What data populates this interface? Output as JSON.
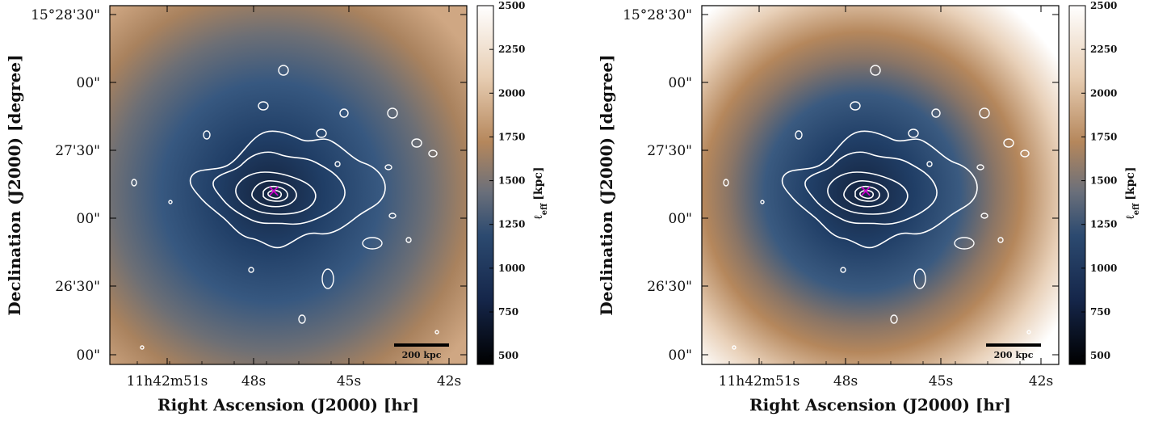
{
  "chart_data": [
    {
      "type": "heatmap",
      "xlabel": "Right Ascension (J2000) [hr]",
      "ylabel": "Declination (J2000) [degree]",
      "x_tick_labels": [
        "11h42m51s",
        "48s",
        "45s",
        "42s"
      ],
      "y_tick_labels": [
        "15°28'30\"",
        "00\"",
        "27'30\"",
        "00\"",
        "26'30\"",
        "00\""
      ],
      "colorbar": {
        "label": "ℓ",
        "label_sub": "eff",
        "label_unit": "[kpc]",
        "range": [
          450,
          2500
        ],
        "ticks": [
          "2500",
          "2250",
          "2000",
          "1750",
          "1500",
          "1250",
          "1000",
          "750",
          "500"
        ],
        "colors": [
          "#ffffff",
          "#b5875c",
          "#2c4a70",
          "#000000"
        ]
      },
      "scale_bar_label": "200 kpc",
      "marker": "×",
      "marker_color": "#d200d2",
      "contour_color": "#ffffff",
      "edge_value_kpc": 1900,
      "center_value_kpc": 700
    },
    {
      "type": "heatmap",
      "xlabel": "Right Ascension (J2000) [hr]",
      "ylabel": "Declination (J2000) [degree]",
      "x_tick_labels": [
        "11h42m51s",
        "48s",
        "45s",
        "42s"
      ],
      "y_tick_labels": [
        "15°28'30\"",
        "00\"",
        "27'30\"",
        "00\"",
        "26'30\"",
        "00\""
      ],
      "colorbar": {
        "label": "ℓ",
        "label_sub": "eff",
        "label_unit": "[kpc]",
        "range": [
          450,
          2500
        ],
        "ticks": [
          "2500",
          "2250",
          "2000",
          "1750",
          "1500",
          "1250",
          "1000",
          "750",
          "500"
        ],
        "colors": [
          "#ffffff",
          "#b5875c",
          "#2c4a70",
          "#000000"
        ]
      },
      "scale_bar_label": "200 kpc",
      "marker": "×",
      "marker_color": "#d200d2",
      "contour_color": "#ffffff",
      "edge_value_kpc": 2500,
      "center_value_kpc": 700
    }
  ]
}
